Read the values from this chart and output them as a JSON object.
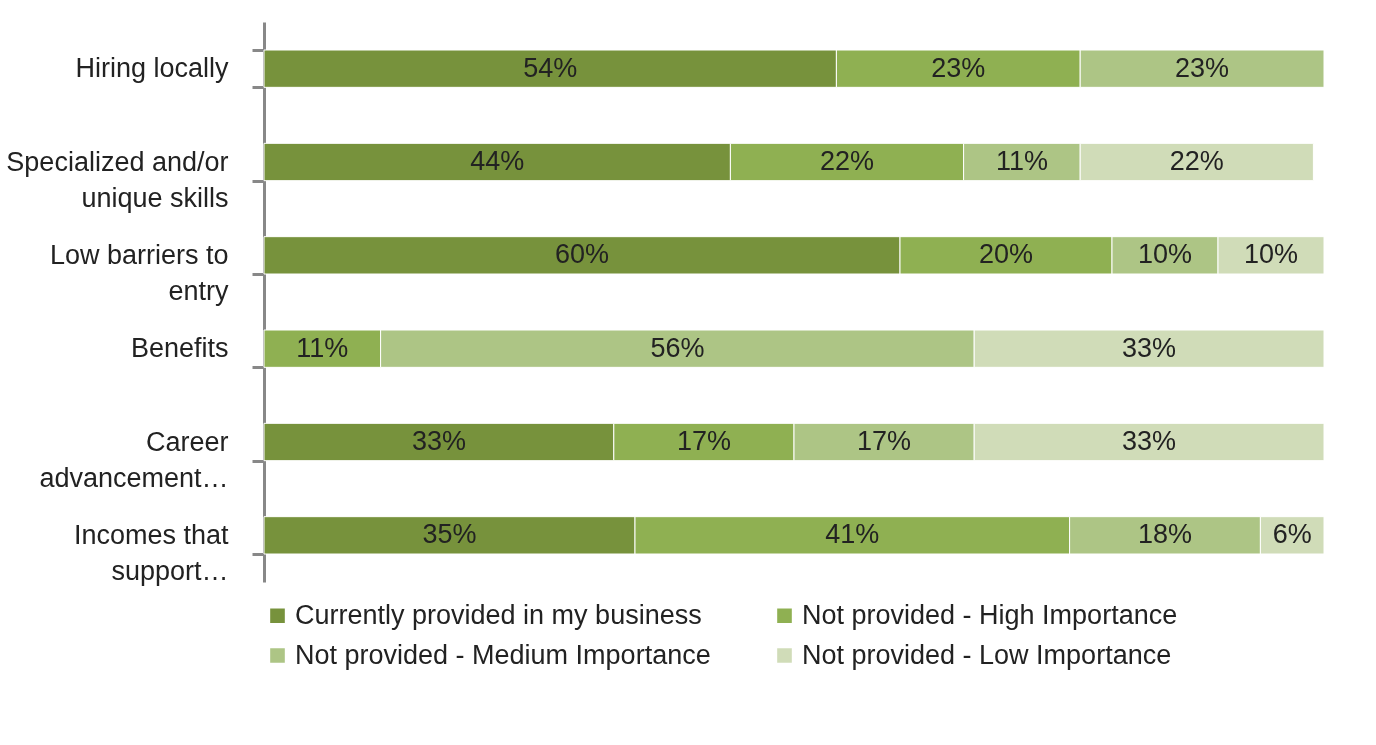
{
  "chart_data": {
    "type": "bar",
    "orientation": "horizontal",
    "stacked": true,
    "xlim": [
      0,
      100
    ],
    "tick_labels": "y",
    "legend": "bottom",
    "grid": false,
    "categories": [
      "Hiring locally",
      "Specialized and/or\nunique skills",
      "Low barriers to\nentry",
      "Benefits",
      "Career\nadvancement…",
      "Incomes that\nsupport…"
    ],
    "series": [
      {
        "name": "Currently provided in my business",
        "color": "#77923c",
        "values": [
          54,
          44,
          60,
          null,
          33,
          35
        ],
        "value_labels": [
          "54%",
          "44%",
          "60%",
          null,
          "33%",
          "35%"
        ]
      },
      {
        "name": "Not provided - High Importance",
        "color": "#8fb052",
        "values": [
          23,
          22,
          20,
          11,
          17,
          41
        ],
        "value_labels": [
          "23%",
          "22%",
          "20%",
          "11%",
          "17%",
          "41%"
        ]
      },
      {
        "name": "Not provided - Medium Importance",
        "color": "#adc585",
        "values": [
          23,
          11,
          10,
          56,
          17,
          18
        ],
        "value_labels": [
          "23%",
          "11%",
          "10%",
          "56%",
          "17%",
          "18%"
        ]
      },
      {
        "name": "Not provided - Low Importance",
        "color": "#d0dcb8",
        "values": [
          null,
          22,
          10,
          33,
          33,
          6
        ],
        "value_labels": [
          null,
          "22%",
          "10%",
          "33%",
          "33%",
          "6%"
        ]
      }
    ]
  }
}
